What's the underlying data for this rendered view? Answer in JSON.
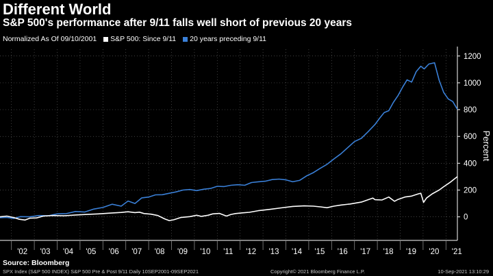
{
  "header": {
    "title": "Different World",
    "subtitle": "S&P 500's performance after 9/11 falls well short of previous 20 years"
  },
  "legend": {
    "items": [
      {
        "label": "Normalized As Of 09/10/2001",
        "color": ""
      },
      {
        "label": "S&P 500: Since 9/11",
        "color": "#ffffff"
      },
      {
        "label": "20 years preceding 9/11",
        "color": "#3a80d8"
      }
    ]
  },
  "footer": {
    "source": "Source: Bloomberg",
    "left": "SPX Index (S&P 500 INDEX) S&P 500 Pre & Post 9/11  Daily 10SEP2001-09SEP2021",
    "center": "Copyright© 2021 Bloomberg Finance L.P.",
    "right": "10-Sep-2021 13:10:29"
  },
  "chart_data": {
    "type": "line",
    "ylabel": "Percent",
    "ylim": [
      -150,
      1250
    ],
    "yticks": [
      0,
      200,
      400,
      600,
      800,
      1000,
      1200
    ],
    "xlim": [
      2001.7,
      2021.7
    ],
    "xtick_labels": [
      "'02",
      "'03",
      "'04",
      "'05",
      "'06",
      "'07",
      "'08",
      "'09",
      "'10",
      "'11",
      "'12",
      "'13",
      "'14",
      "'15",
      "'16",
      "'17",
      "'18",
      "'19",
      "'20",
      "'21"
    ],
    "xtick_positions": [
      2002.2,
      2003.2,
      2004.2,
      2005.2,
      2006.2,
      2007.2,
      2008.2,
      2009.2,
      2010.2,
      2011.2,
      2012.2,
      2013.2,
      2014.2,
      2015.2,
      2016.2,
      2017.2,
      2018.2,
      2019.2,
      2020.2,
      2021.2
    ],
    "grid": true,
    "series": [
      {
        "name": "S&P 500: Since 9/11",
        "color": "#ffffff",
        "x": [
          2001.7,
          2002.0,
          2002.3,
          2002.55,
          2002.8,
          2003.0,
          2003.3,
          2003.6,
          2004.0,
          2004.5,
          2005.0,
          2005.5,
          2006.0,
          2006.5,
          2007.0,
          2007.3,
          2007.6,
          2007.8,
          2008.0,
          2008.3,
          2008.6,
          2008.9,
          2009.1,
          2009.3,
          2009.6,
          2010.0,
          2010.3,
          2010.5,
          2010.8,
          2011.0,
          2011.3,
          2011.6,
          2011.8,
          2012.0,
          2012.3,
          2012.6,
          2013.0,
          2013.5,
          2014.0,
          2014.5,
          2015.0,
          2015.4,
          2015.7,
          2016.0,
          2016.3,
          2016.6,
          2017.0,
          2017.5,
          2018.0,
          2018.1,
          2018.4,
          2018.7,
          2018.95,
          2019.1,
          2019.4,
          2019.7,
          2020.0,
          2020.1,
          2020.22,
          2020.35,
          2020.6,
          2020.9,
          2021.1,
          2021.4,
          2021.7
        ],
        "y": [
          0,
          6,
          -5,
          -18,
          -24,
          -10,
          -8,
          6,
          10,
          8,
          14,
          18,
          22,
          28,
          33,
          38,
          32,
          35,
          25,
          20,
          10,
          -15,
          -28,
          -22,
          -5,
          2,
          12,
          4,
          12,
          22,
          26,
          6,
          18,
          25,
          30,
          34,
          46,
          56,
          67,
          78,
          82,
          80,
          75,
          68,
          80,
          88,
          96,
          110,
          140,
          128,
          126,
          148,
          116,
          130,
          148,
          155,
          172,
          176,
          108,
          140,
          172,
          200,
          225,
          260,
          300
        ]
      },
      {
        "name": "20 years preceding 9/11",
        "color": "#3a80d8",
        "x": [
          2001.7,
          2002.0,
          2002.3,
          2002.6,
          2003.0,
          2003.4,
          2003.8,
          2004.2,
          2004.6,
          2005.0,
          2005.4,
          2005.8,
          2006.2,
          2006.6,
          2007.0,
          2007.3,
          2007.6,
          2007.9,
          2008.2,
          2008.5,
          2008.8,
          2009.1,
          2009.4,
          2009.7,
          2010.0,
          2010.3,
          2010.6,
          2010.9,
          2011.2,
          2011.5,
          2011.8,
          2012.1,
          2012.4,
          2012.7,
          2013.0,
          2013.3,
          2013.6,
          2013.9,
          2014.2,
          2014.5,
          2014.8,
          2015.1,
          2015.4,
          2015.7,
          2016.0,
          2016.3,
          2016.6,
          2016.9,
          2017.2,
          2017.5,
          2017.8,
          2018.1,
          2018.3,
          2018.5,
          2018.7,
          2018.9,
          2019.1,
          2019.3,
          2019.5,
          2019.7,
          2019.9,
          2020.1,
          2020.25,
          2020.45,
          2020.7,
          2020.9,
          2021.1,
          2021.3,
          2021.5,
          2021.7
        ],
        "y": [
          -6,
          -4,
          -12,
          2,
          0,
          10,
          8,
          22,
          24,
          40,
          36,
          58,
          70,
          94,
          80,
          118,
          100,
          142,
          148,
          164,
          165,
          176,
          186,
          200,
          204,
          196,
          206,
          212,
          228,
          226,
          236,
          240,
          236,
          256,
          262,
          266,
          278,
          282,
          276,
          262,
          272,
          305,
          330,
          362,
          392,
          432,
          470,
          516,
          562,
          586,
          636,
          690,
          736,
          778,
          792,
          854,
          904,
          966,
          1022,
          1006,
          1084,
          1124,
          1104,
          1140,
          1150,
          1020,
          928,
          880,
          860,
          802
        ]
      }
    ]
  }
}
